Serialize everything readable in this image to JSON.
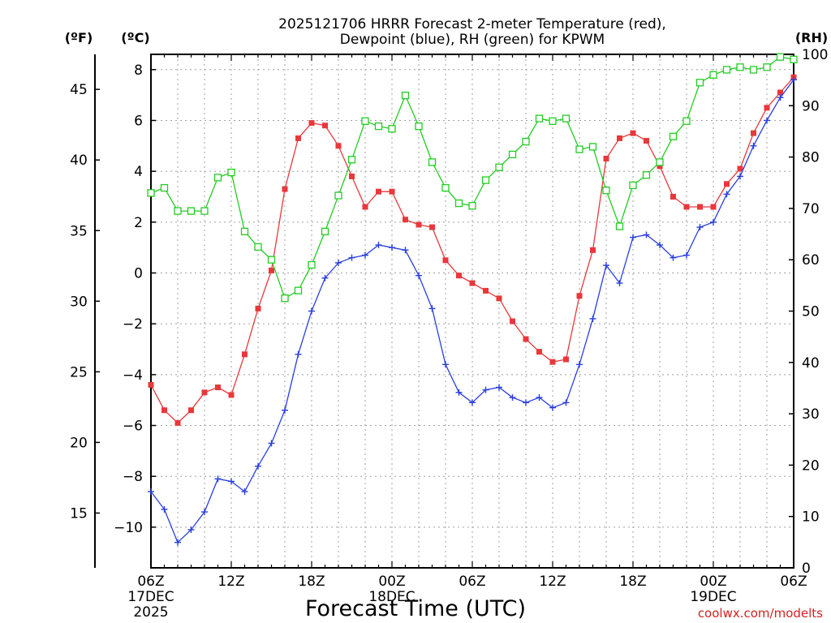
{
  "chart_data": {
    "type": "line",
    "title_line1": "2025121706 HRRR Forecast 2-meter Temperature (red),",
    "title_line2": "Dewpoint (blue), RH (green) for KPWM",
    "left_outer_unit": "(ºF)",
    "left_inner_unit": "(ºC)",
    "right_unit": "(RH)",
    "xlabel": "Forecast Time (UTC)",
    "credit": "coolwx.com/modelts",
    "x_ticks": [
      {
        "hour": 0,
        "label": "06Z",
        "sub1": "17DEC",
        "sub2": "2025"
      },
      {
        "hour": 6,
        "label": "12Z",
        "sub1": "",
        "sub2": ""
      },
      {
        "hour": 12,
        "label": "18Z",
        "sub1": "",
        "sub2": ""
      },
      {
        "hour": 18,
        "label": "00Z",
        "sub1": "18DEC",
        "sub2": ""
      },
      {
        "hour": 24,
        "label": "06Z",
        "sub1": "",
        "sub2": ""
      },
      {
        "hour": 30,
        "label": "12Z",
        "sub1": "",
        "sub2": ""
      },
      {
        "hour": 36,
        "label": "18Z",
        "sub1": "",
        "sub2": ""
      },
      {
        "hour": 42,
        "label": "00Z",
        "sub1": "19DEC",
        "sub2": ""
      },
      {
        "hour": 48,
        "label": "06Z",
        "sub1": "",
        "sub2": ""
      }
    ],
    "x_range": [
      0,
      48
    ],
    "celsius_range": [
      -11.6,
      8.6
    ],
    "celsius_ticks": [
      "8",
      "6",
      "4",
      "2",
      "0",
      "−2",
      "−4",
      "−6",
      "−8",
      "−10"
    ],
    "celsius_tick_values": [
      8,
      6,
      4,
      2,
      0,
      -2,
      -4,
      -6,
      -8,
      -10
    ],
    "fahrenheit_ticks": [
      "45",
      "40",
      "35",
      "30",
      "25",
      "20",
      "15"
    ],
    "fahrenheit_tick_values": [
      45,
      40,
      35,
      30,
      25,
      20,
      15
    ],
    "rh_range": [
      0,
      100
    ],
    "rh_ticks": [
      "100",
      "90",
      "80",
      "70",
      "60",
      "50",
      "40",
      "30",
      "20",
      "10",
      "0"
    ],
    "rh_tick_values": [
      100,
      90,
      80,
      70,
      60,
      50,
      40,
      30,
      20,
      10,
      0
    ],
    "series": [
      {
        "name": "2-meter Temperature",
        "unit": "C",
        "color": "#e8383c",
        "marker": "filled-square",
        "values": [
          -4.4,
          -5.4,
          -5.9,
          -5.4,
          -4.7,
          -4.5,
          -4.8,
          -3.2,
          -1.4,
          0.1,
          3.3,
          5.3,
          5.9,
          5.8,
          5.0,
          3.8,
          2.6,
          3.2,
          3.2,
          2.1,
          1.9,
          1.8,
          0.5,
          -0.1,
          -0.4,
          -0.7,
          -1.0,
          -1.9,
          -2.6,
          -3.1,
          -3.5,
          -3.4,
          -0.9,
          0.9,
          4.5,
          5.3,
          5.5,
          5.2,
          4.2,
          3.0,
          2.6,
          2.6,
          2.6,
          3.5,
          4.1,
          5.5,
          6.5,
          7.1,
          7.7
        ]
      },
      {
        "name": "Dewpoint",
        "unit": "C",
        "color": "#2a3fe0",
        "marker": "plus",
        "values": [
          -8.6,
          -9.3,
          -10.6,
          -10.1,
          -9.4,
          -8.1,
          -8.2,
          -8.6,
          -7.6,
          -6.7,
          -5.4,
          -3.2,
          -1.5,
          -0.2,
          0.4,
          0.6,
          0.7,
          1.1,
          1.0,
          0.9,
          -0.1,
          -1.4,
          -3.6,
          -4.7,
          -5.1,
          -4.6,
          -4.5,
          -4.9,
          -5.1,
          -4.9,
          -5.3,
          -5.1,
          -3.6,
          -1.8,
          0.3,
          -0.4,
          1.4,
          1.5,
          1.1,
          0.6,
          0.7,
          1.8,
          2.0,
          3.1,
          3.8,
          5.0,
          6.0,
          6.9,
          7.6
        ]
      },
      {
        "name": "RH",
        "unit": "%",
        "color": "#22cc22",
        "marker": "open-square",
        "values": [
          73,
          74,
          69.5,
          69.5,
          69.5,
          76,
          77,
          65.5,
          62.5,
          60,
          52.5,
          54,
          59,
          65.5,
          72.5,
          79.5,
          87,
          86,
          85.5,
          92,
          86,
          79,
          74,
          71,
          70.5,
          75.5,
          78,
          80.5,
          83,
          87.5,
          87,
          87.5,
          81.5,
          82,
          73.5,
          66.5,
          74.5,
          76.5,
          79,
          84,
          87,
          94.5,
          96,
          97,
          97.5,
          97,
          97.5,
          99.5,
          99
        ]
      }
    ]
  }
}
